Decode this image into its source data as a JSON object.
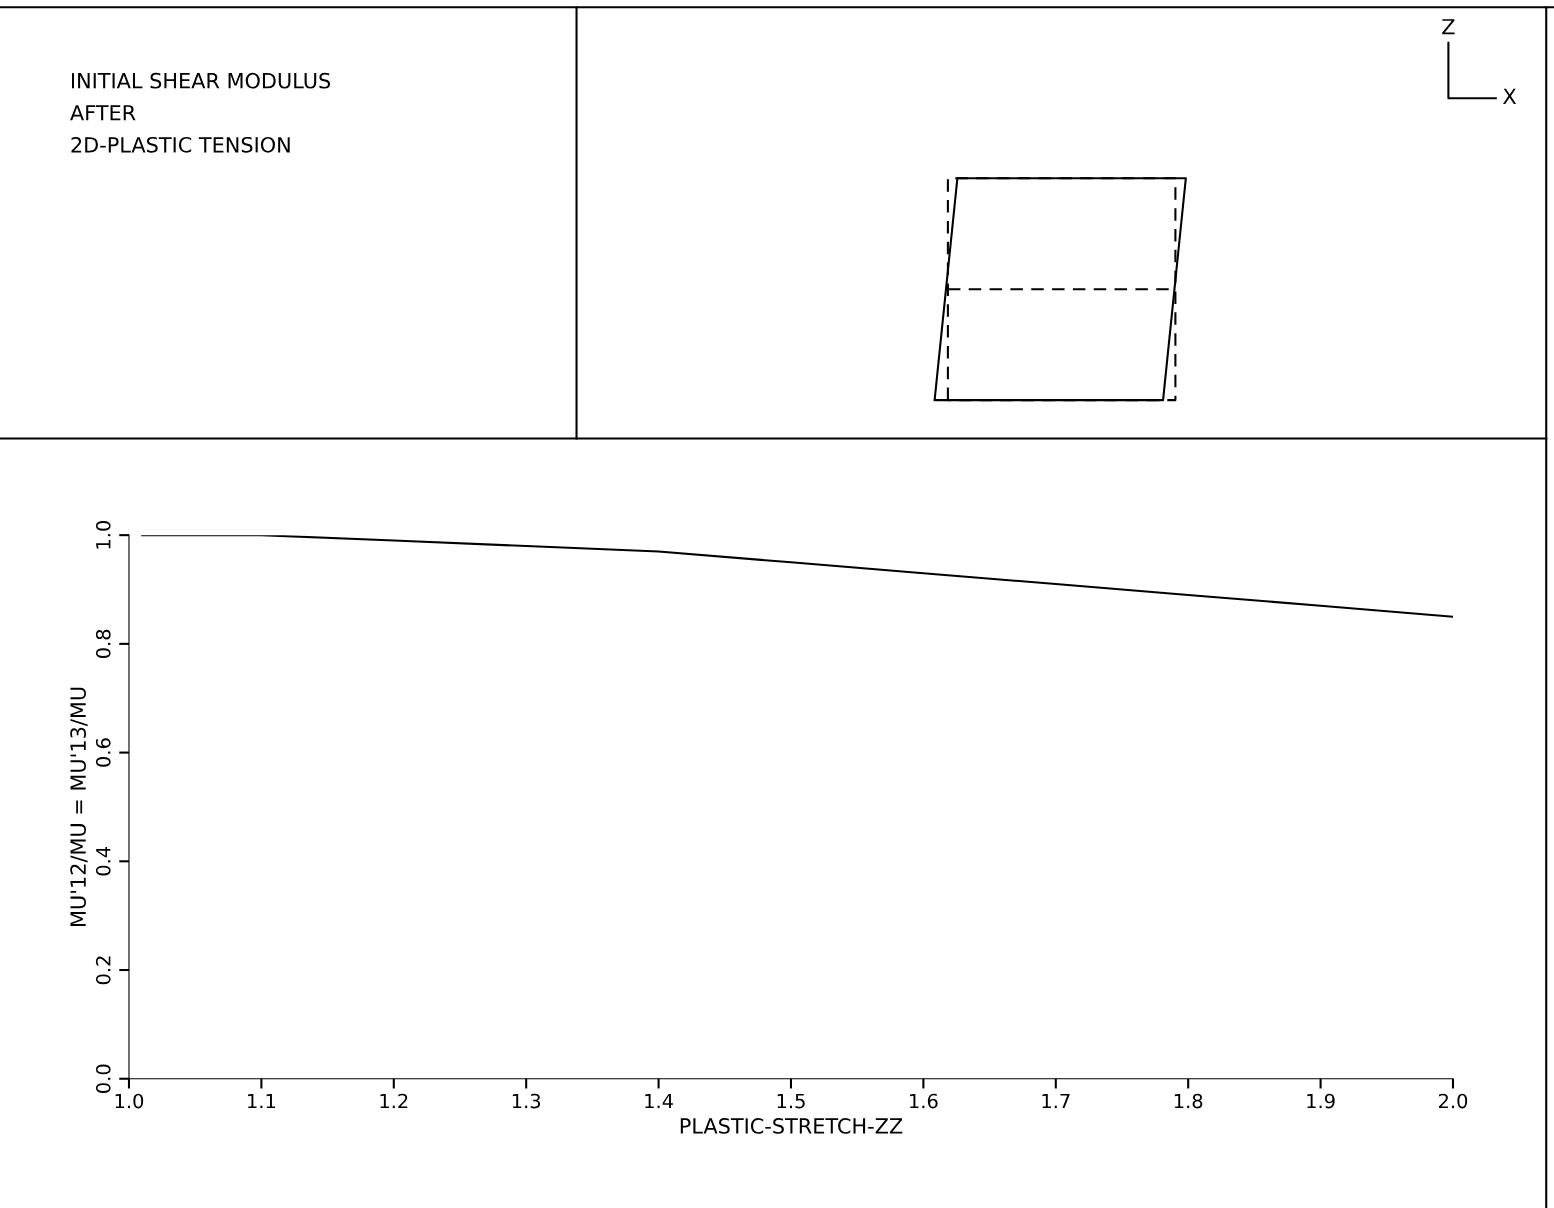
{
  "chart_data": {
    "type": "line",
    "title": "INITIAL SHEAR MODULUS\nAFTER\n2D-PLASTIC TENSION",
    "xlabel": "PLASTIC-STRETCH-ZZ",
    "ylabel": "MU'12/MU = MU'13/MU",
    "x": [
      1.01,
      1.1,
      1.2,
      1.3,
      1.4,
      1.5,
      1.6,
      1.7,
      1.8,
      1.9,
      2.0
    ],
    "series": [
      {
        "color": "#000000",
        "values": [
          1.0,
          1.0,
          0.99,
          0.98,
          0.97,
          0.95,
          0.93,
          0.91,
          0.89,
          0.87,
          0.85
        ]
      }
    ],
    "xlim": [
      1.0,
      2.0
    ],
    "xticks": [
      {
        "value": 1.0,
        "label": "1.0"
      },
      1.1,
      1.2,
      1.3,
      1.4,
      1.5,
      1.6,
      1.7,
      1.8,
      1.9,
      {
        "value": 2.0,
        "label": "2.0"
      }
    ],
    "ylim": [
      0,
      1.0
    ],
    "yticks": [
      {
        "value": 0,
        "label": "0.0"
      },
      0.2,
      0.4,
      0.6,
      0.8,
      {
        "value": 1.0,
        "label": "1.0"
      }
    ],
    "annotations": [
      "Z",
      "X"
    ],
    "grid": false,
    "marker": "none",
    "line_style": "solid"
  }
}
